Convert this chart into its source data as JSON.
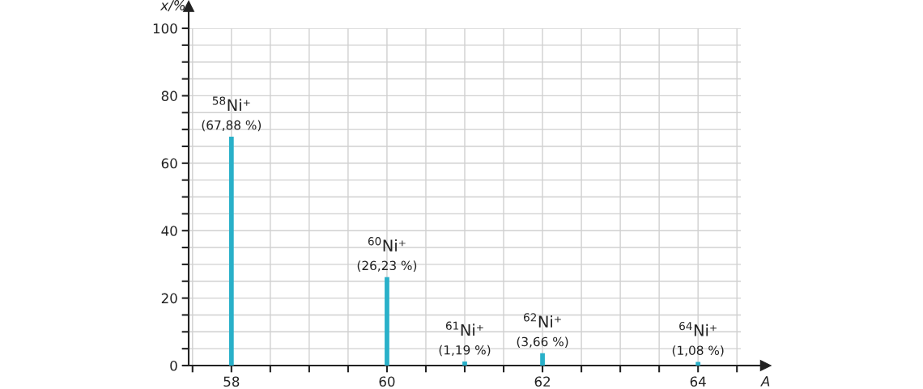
{
  "chart_data": {
    "type": "bar",
    "xlabel": "A",
    "ylabel": "x/%",
    "x": [
      58,
      60,
      61,
      62,
      64
    ],
    "values": [
      67.88,
      26.23,
      1.19,
      3.66,
      1.08
    ],
    "value_labels": [
      "(67,88 %)",
      "(26,23 %)",
      "(1,19 %)",
      "(3,66 %)",
      "(1,08 %)"
    ],
    "color": "#29b0c9",
    "annotations": [
      {
        "text": "$^{58}$Ni⁺",
        "x": 58,
        "y": 67.88
      },
      {
        "text": "$^{60}$Ni⁺",
        "x": 60,
        "y": 26.23
      },
      {
        "text": "$^{61}$Ni⁺",
        "x": 61,
        "y": 1.19
      },
      {
        "text": "$^{62}$Ni⁺",
        "x": 62,
        "y": 3.66
      },
      {
        "text": "$^{64}$Ni⁺",
        "x": 64,
        "y": 1.08
      }
    ],
    "xlim": [
      57.45,
      64.55
    ],
    "xticks": [
      {
        "value": 57.5,
        "label": null
      },
      58,
      {
        "value": 58.5,
        "label": null
      },
      {
        "value": 59,
        "label": null
      },
      {
        "value": 59.5,
        "label": null
      },
      60,
      {
        "value": 60.5,
        "label": null
      },
      {
        "value": 61,
        "label": null
      },
      {
        "value": 61.5,
        "label": null
      },
      62,
      {
        "value": 62.5,
        "label": null
      },
      {
        "value": 63,
        "label": null
      },
      {
        "value": 63.5,
        "label": null
      },
      64,
      {
        "value": 64.5,
        "label": null
      }
    ],
    "ylim": [
      0,
      100
    ],
    "yticks": [
      0,
      {
        "value": 5,
        "label": null
      },
      {
        "value": 10,
        "label": null
      },
      {
        "value": 15,
        "label": null
      },
      20,
      {
        "value": 25,
        "label": null
      },
      {
        "value": 30,
        "label": null
      },
      {
        "value": 35,
        "label": null
      },
      40,
      {
        "value": 45,
        "label": null
      },
      {
        "value": 50,
        "label": null
      },
      {
        "value": 55,
        "label": null
      },
      60,
      {
        "value": 65,
        "label": null
      },
      {
        "value": 70,
        "label": null
      },
      {
        "value": 75,
        "label": null
      },
      80,
      {
        "value": 85,
        "label": null
      },
      {
        "value": 90,
        "label": null
      },
      {
        "value": 95,
        "label": null
      },
      100
    ],
    "grid": true
  }
}
